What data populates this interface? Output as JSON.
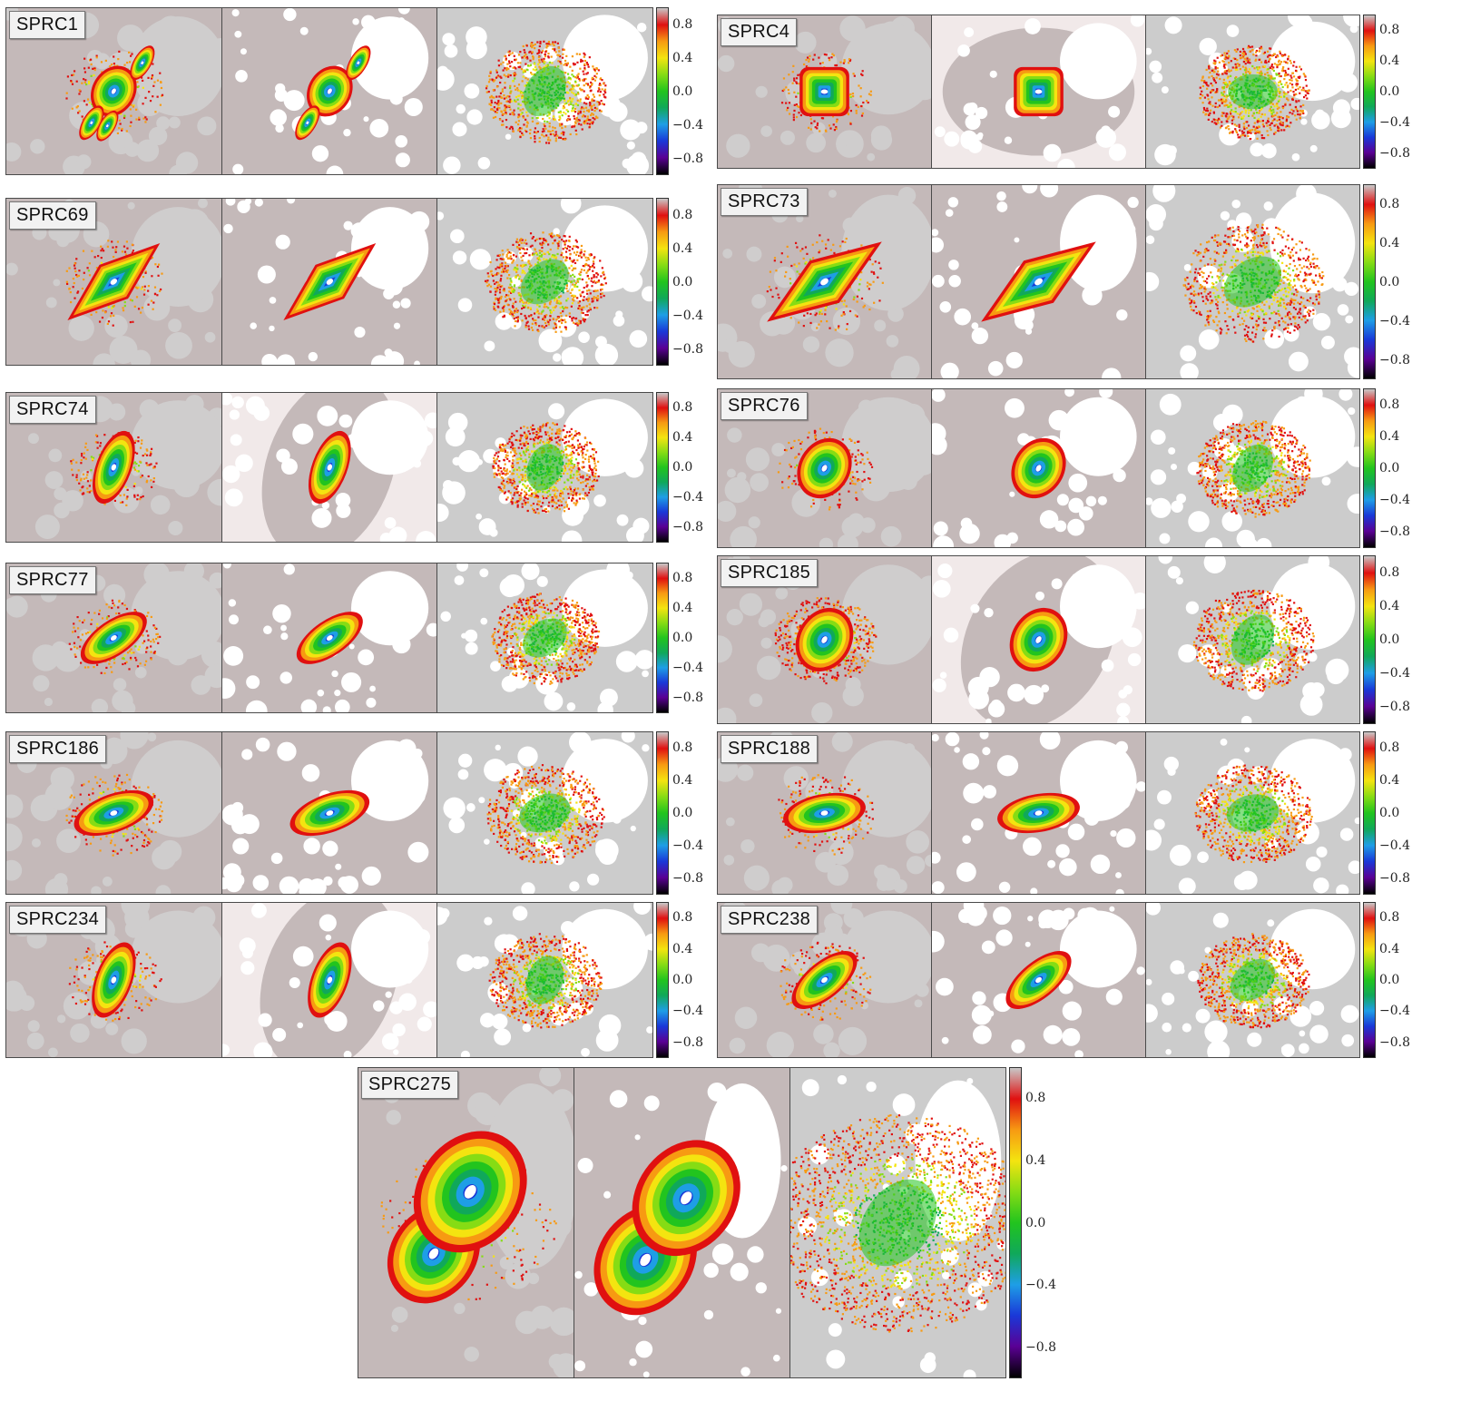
{
  "colorbar": {
    "ticks": [
      "0.8",
      "0.4",
      "0.0",
      "−0.4",
      "−0.8"
    ],
    "tick_values": [
      0.8,
      0.4,
      0.0,
      -0.4,
      -0.8
    ],
    "range": [
      -1.0,
      1.0
    ],
    "colors": [
      "#000000",
      "#5a0094",
      "#1a38d8",
      "#1e9ee6",
      "#10a85a",
      "#22c41e",
      "#86dc14",
      "#f4e410",
      "#f79a12",
      "#e01010",
      "#c8c8c8"
    ]
  },
  "colors": {
    "background": "#c4b9b9",
    "mask_white": "#ffffff",
    "mask_grey": "#cfcdcd",
    "outer_pink": "#f1e9e9",
    "panel_border": "#4a4a4a"
  },
  "galaxies": [
    {
      "name": "SPRC1"
    },
    {
      "name": "SPRC4"
    },
    {
      "name": "SPRC69"
    },
    {
      "name": "SPRC73"
    },
    {
      "name": "SPRC74"
    },
    {
      "name": "SPRC76"
    },
    {
      "name": "SPRC77"
    },
    {
      "name": "SPRC185"
    },
    {
      "name": "SPRC186"
    },
    {
      "name": "SPRC188"
    },
    {
      "name": "SPRC234"
    },
    {
      "name": "SPRC238"
    },
    {
      "name": "SPRC275"
    }
  ]
}
